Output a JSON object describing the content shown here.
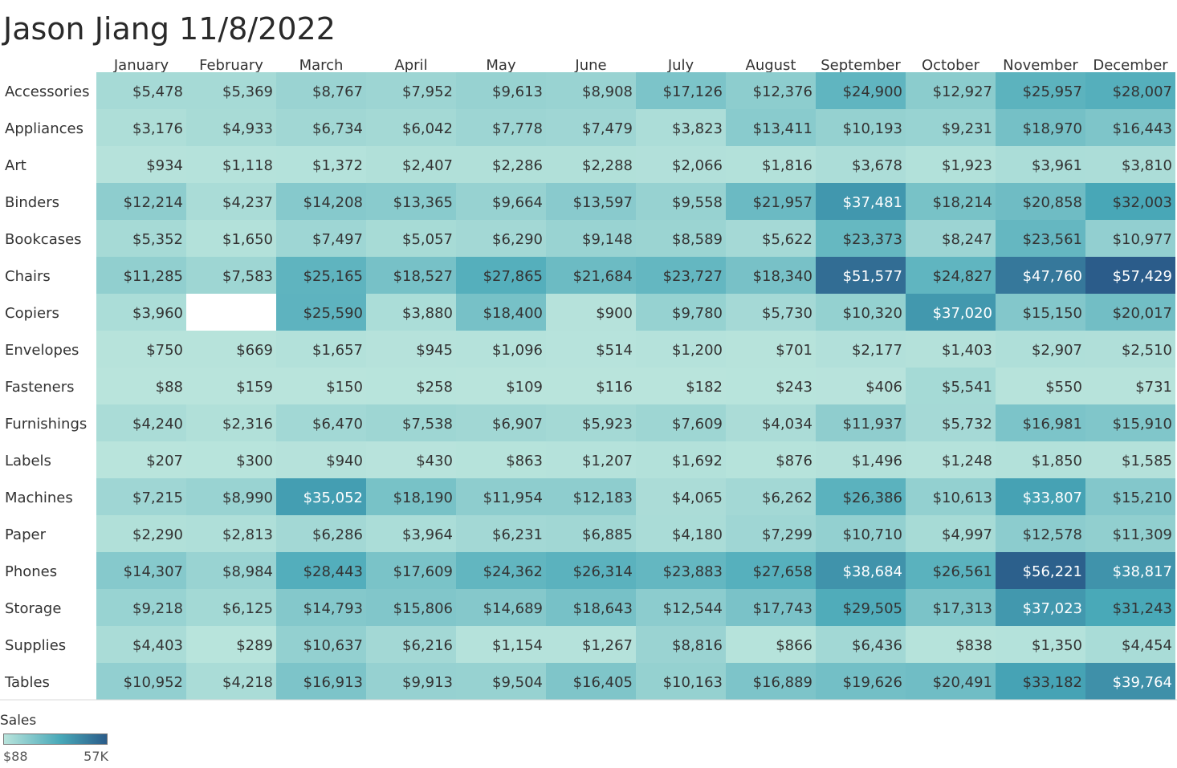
{
  "header": {
    "title": "Jason Jiang 11/8/2022"
  },
  "chart_data": {
    "type": "heatmap",
    "title": "Jason Jiang 11/8/2022",
    "measure": "Sales",
    "columns": [
      "January",
      "February",
      "March",
      "April",
      "May",
      "June",
      "July",
      "August",
      "September",
      "October",
      "November",
      "December"
    ],
    "rows": [
      "Accessories",
      "Appliances",
      "Art",
      "Binders",
      "Bookcases",
      "Chairs",
      "Copiers",
      "Envelopes",
      "Fasteners",
      "Furnishings",
      "Labels",
      "Machines",
      "Paper",
      "Phones",
      "Storage",
      "Supplies",
      "Tables"
    ],
    "values": [
      [
        5478,
        5369,
        8767,
        7952,
        9613,
        8908,
        17126,
        12376,
        24900,
        12927,
        25957,
        28007
      ],
      [
        3176,
        4933,
        6734,
        6042,
        7778,
        7479,
        3823,
        13411,
        10193,
        9231,
        18970,
        16443
      ],
      [
        934,
        1118,
        1372,
        2407,
        2286,
        2288,
        2066,
        1816,
        3678,
        1923,
        3961,
        3810
      ],
      [
        12214,
        4237,
        14208,
        13365,
        9664,
        13597,
        9558,
        21957,
        37481,
        18214,
        20858,
        32003
      ],
      [
        5352,
        1650,
        7497,
        5057,
        6290,
        9148,
        8589,
        5622,
        23373,
        8247,
        23561,
        10977
      ],
      [
        11285,
        7583,
        25165,
        18527,
        27865,
        21684,
        23727,
        18340,
        51577,
        24827,
        47760,
        57429
      ],
      [
        3960,
        null,
        25590,
        3880,
        18400,
        900,
        9780,
        5730,
        10320,
        37020,
        15150,
        20017
      ],
      [
        750,
        669,
        1657,
        945,
        1096,
        514,
        1200,
        701,
        2177,
        1403,
        2907,
        2510
      ],
      [
        88,
        159,
        150,
        258,
        109,
        116,
        182,
        243,
        406,
        5541,
        550,
        731
      ],
      [
        4240,
        2316,
        6470,
        7538,
        6907,
        5923,
        7609,
        4034,
        11937,
        5732,
        16981,
        15910
      ],
      [
        207,
        300,
        940,
        430,
        863,
        1207,
        1692,
        876,
        1496,
        1248,
        1850,
        1585
      ],
      [
        7215,
        8990,
        35052,
        18190,
        11954,
        12183,
        4065,
        6262,
        26386,
        10613,
        33807,
        15210
      ],
      [
        2290,
        2813,
        6286,
        3964,
        6231,
        6885,
        4180,
        7299,
        10710,
        4997,
        12578,
        11309
      ],
      [
        14307,
        8984,
        28443,
        17609,
        24362,
        26314,
        23883,
        27658,
        38684,
        26561,
        56221,
        38817
      ],
      [
        9218,
        6125,
        14793,
        15806,
        14689,
        18643,
        12544,
        17743,
        29505,
        17313,
        37023,
        31243
      ],
      [
        4403,
        289,
        10637,
        6216,
        1154,
        1267,
        8816,
        866,
        6436,
        838,
        1350,
        4454
      ],
      [
        10952,
        4218,
        16913,
        9913,
        9504,
        16405,
        10163,
        16889,
        19626,
        20491,
        33182,
        39764
      ]
    ],
    "color_range": {
      "min": 88,
      "max": 57429,
      "min_label": "$88",
      "max_label": "57K"
    },
    "colors": {
      "low": "#b9e4dc",
      "mid": "#48a8b8",
      "high": "#2b5c8a"
    }
  },
  "legend": {
    "title": "Sales",
    "min_label": "$88",
    "max_label": "57K"
  }
}
